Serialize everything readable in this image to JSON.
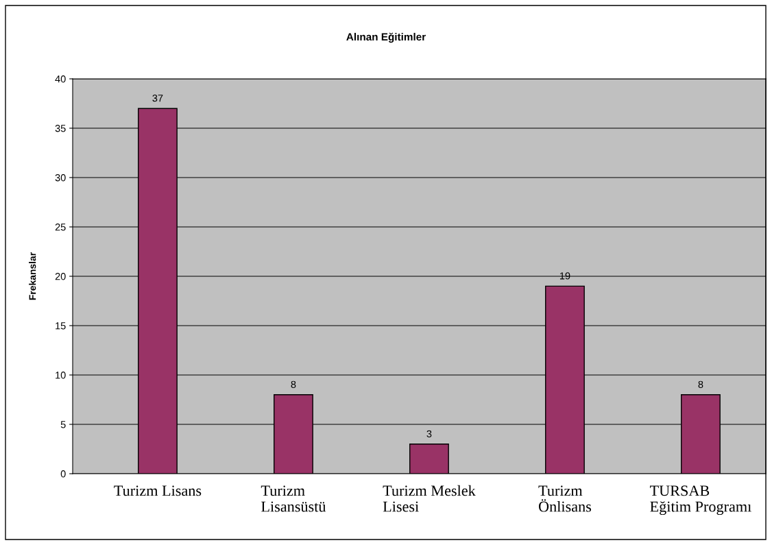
{
  "chart_data": {
    "type": "bar",
    "title": "Alınan Eğitimler",
    "ylabel": "Frekanslar",
    "categories": [
      "Turizm Lisans",
      "Turizm\nLisansüstü",
      "Turizm Meslek\nLisesi",
      "Turizm\nÖnlisans",
      "TURSAB\nEğitim Programı"
    ],
    "values": [
      37,
      8,
      3,
      19,
      8
    ],
    "color": "#993366",
    "ylim": [
      0,
      40
    ],
    "yticks": [
      0,
      5,
      10,
      15,
      20,
      25,
      30,
      35,
      40
    ],
    "grid": "y",
    "data_labels": true,
    "legend": false
  }
}
